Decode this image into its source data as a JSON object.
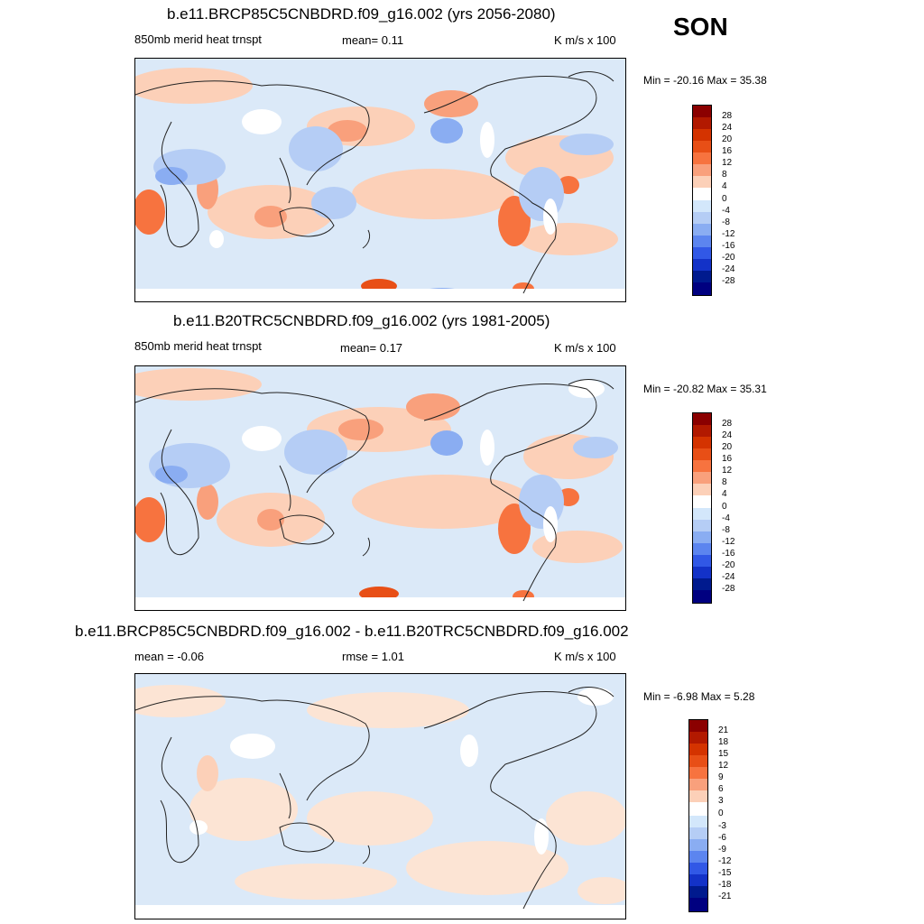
{
  "season": "SON",
  "panels": [
    {
      "title": "b.e11.BRCP85C5CNBDRD.f09_g16.002 (yrs 2056-2080)",
      "left_label": "850mb merid heat trnspt",
      "mid_label": "mean=   0.11",
      "units": "K m/s x 100",
      "minmax": "Min = -20.16 Max =  35.38",
      "levels": [
        "28",
        "24",
        "20",
        "16",
        "12",
        "8",
        "4",
        "0",
        "-4",
        "-8",
        "-12",
        "-16",
        "-20",
        "-24",
        "-28"
      ]
    },
    {
      "title": "b.e11.B20TRC5CNBDRD.f09_g16.002 (yrs 1981-2005)",
      "left_label": "850mb merid heat trnspt",
      "mid_label": "mean=   0.17",
      "units": "K m/s x 100",
      "minmax": "Min = -20.82 Max =  35.31",
      "levels": [
        "28",
        "24",
        "20",
        "16",
        "12",
        "8",
        "4",
        "0",
        "-4",
        "-8",
        "-12",
        "-16",
        "-20",
        "-24",
        "-28"
      ]
    },
    {
      "title": "b.e11.BRCP85C5CNBDRD.f09_g16.002 - b.e11.B20TRC5CNBDRD.f09_g16.002",
      "left_label": "mean =  -0.06",
      "mid_label": "rmse =   1.01",
      "units": "K m/s x 100",
      "minmax": "Min =  -6.98 Max =   5.28",
      "levels": [
        "21",
        "18",
        "15",
        "12",
        "9",
        "6",
        "3",
        "0",
        "-3",
        "-6",
        "-9",
        "-12",
        "-15",
        "-18",
        "-21"
      ]
    }
  ],
  "colors": {
    "ramp": [
      "#8b0000",
      "#b21900",
      "#d43300",
      "#e84f16",
      "#f7733f",
      "#f9a07c",
      "#fcd0b8",
      "#ffffff",
      "#d3e7fb",
      "#b5cdf5",
      "#8aadf2",
      "#5c85ef",
      "#3158e6",
      "#1332c8",
      "#001a8e",
      "#000080"
    ],
    "ocean_base": "#dbe9f8",
    "land_base": "#fce4d4"
  }
}
